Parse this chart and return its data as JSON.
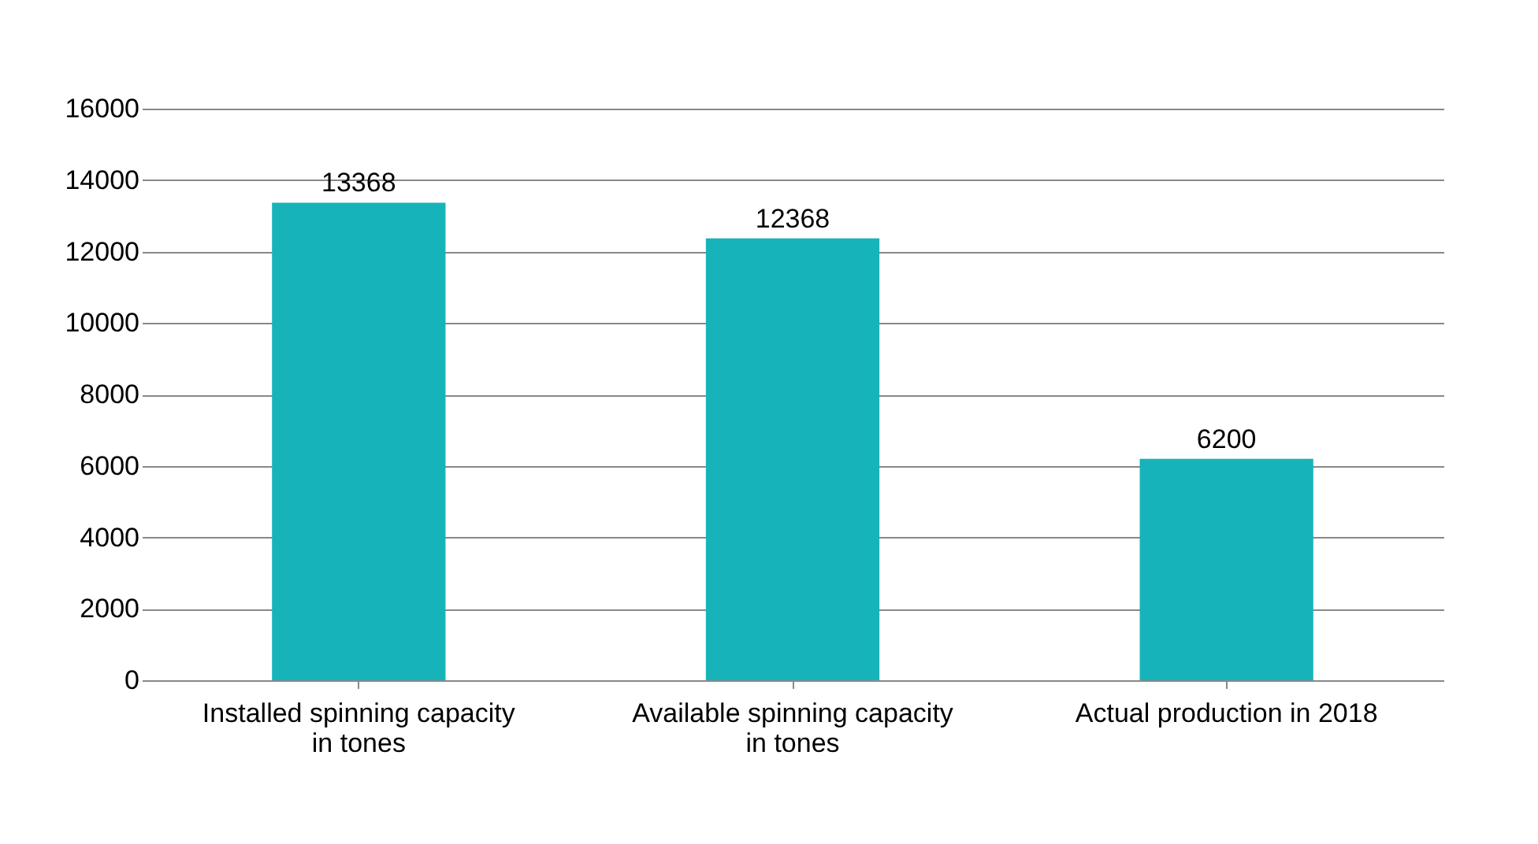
{
  "chart_data": {
    "type": "bar",
    "categories": [
      "Installed spinning capacity in tones",
      "Available spinning capacity in tones",
      "Actual production in 2018"
    ],
    "values": [
      13368,
      12368,
      6200
    ],
    "color": "#17b3bb",
    "ylim": [
      0,
      16000
    ],
    "yticks": [
      0,
      2000,
      4000,
      6000,
      8000,
      10000,
      12000,
      14000,
      16000
    ],
    "grid": "y",
    "data_labels": true
  }
}
